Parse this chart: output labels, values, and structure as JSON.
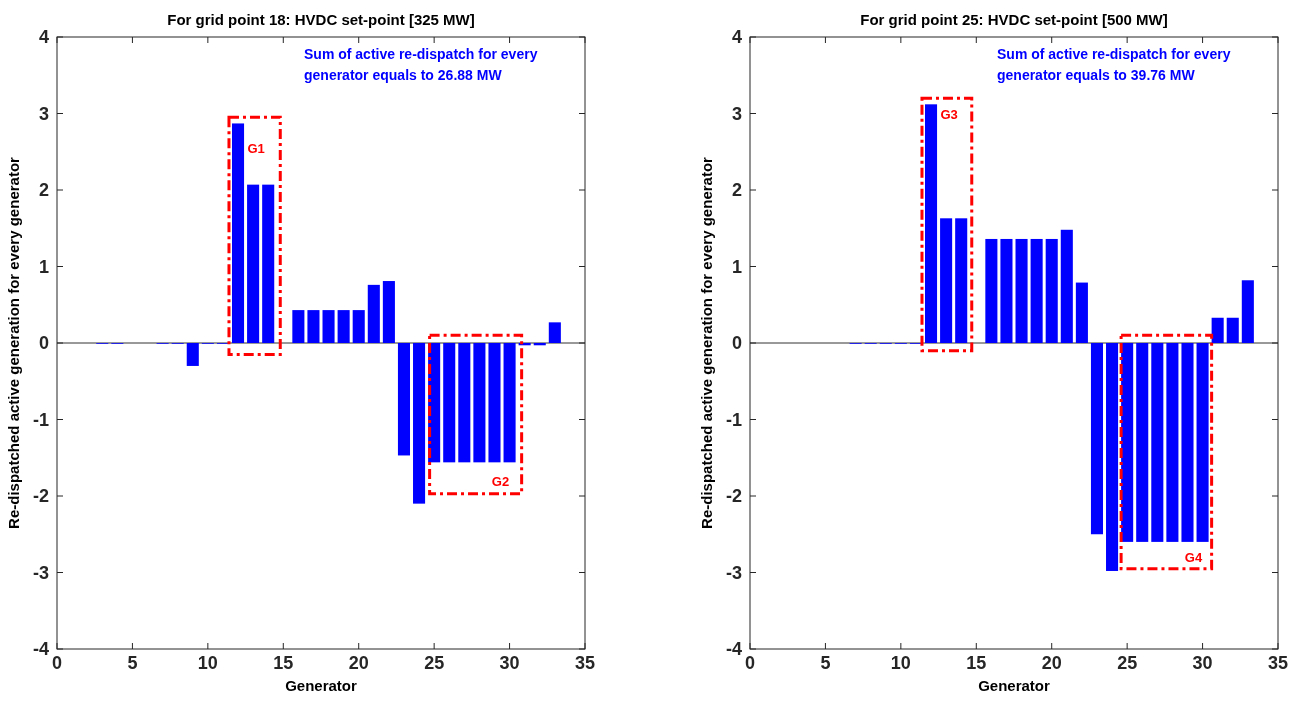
{
  "chart_data": [
    {
      "type": "bar",
      "title": "For grid point 18: HVDC set-point [325 MW]",
      "xlabel": "Generator",
      "ylabel": "Re-dispatched active generation for every generator",
      "x": [
        1,
        2,
        3,
        4,
        5,
        6,
        7,
        8,
        9,
        10,
        11,
        12,
        13,
        14,
        15,
        16,
        17,
        18,
        19,
        20,
        21,
        22,
        23,
        24,
        25,
        26,
        27,
        28,
        29,
        30,
        31,
        32,
        33
      ],
      "values": [
        0,
        0,
        -0.01,
        -0.01,
        0,
        0,
        -0.01,
        -0.01,
        -0.3,
        -0.01,
        -0.01,
        2.87,
        2.07,
        2.07,
        0,
        0.43,
        0.43,
        0.43,
        0.43,
        0.43,
        0.76,
        0.81,
        -1.47,
        -2.1,
        -1.56,
        -1.56,
        -1.56,
        -1.56,
        -1.56,
        -1.56,
        -0.03,
        -0.03,
        0.27
      ],
      "color": "#0000ff",
      "xlim": [
        0,
        35
      ],
      "xticks": [
        0,
        5,
        10,
        15,
        20,
        25,
        30,
        35
      ],
      "ylim": [
        -4,
        4
      ],
      "yticks": [
        -4,
        -3,
        -2,
        -1,
        0,
        1,
        2,
        3,
        4
      ],
      "annotations": [
        "Sum of active re-dispatch for every generator equals to 26.88 MW",
        "G1",
        "G2"
      ]
    },
    {
      "type": "bar",
      "title": "For grid point 25: HVDC set-point [500 MW]",
      "xlabel": "Generator",
      "ylabel": "Re-dispatched active generation for every generator",
      "x": [
        1,
        2,
        3,
        4,
        5,
        6,
        7,
        8,
        9,
        10,
        11,
        12,
        13,
        14,
        15,
        16,
        17,
        18,
        19,
        20,
        21,
        22,
        23,
        24,
        25,
        26,
        27,
        28,
        29,
        30,
        31,
        32,
        33
      ],
      "values": [
        0,
        0,
        0,
        0,
        0,
        0,
        -0.01,
        -0.01,
        -0.01,
        -0.01,
        -0.01,
        3.12,
        1.63,
        1.63,
        0,
        1.36,
        1.36,
        1.36,
        1.36,
        1.36,
        1.48,
        0.79,
        -2.5,
        -2.98,
        -2.6,
        -2.6,
        -2.6,
        -2.6,
        -2.6,
        -2.6,
        0.33,
        0.33,
        0.82
      ],
      "color": "#0000ff",
      "xlim": [
        0,
        35
      ],
      "xticks": [
        0,
        5,
        10,
        15,
        20,
        25,
        30,
        35
      ],
      "ylim": [
        -4,
        4
      ],
      "yticks": [
        -4,
        -3,
        -2,
        -1,
        0,
        1,
        2,
        3,
        4
      ],
      "annotations": [
        "Sum of active re-dispatch for every generator equals to 39.76 MW",
        "G3",
        "G4"
      ]
    }
  ]
}
